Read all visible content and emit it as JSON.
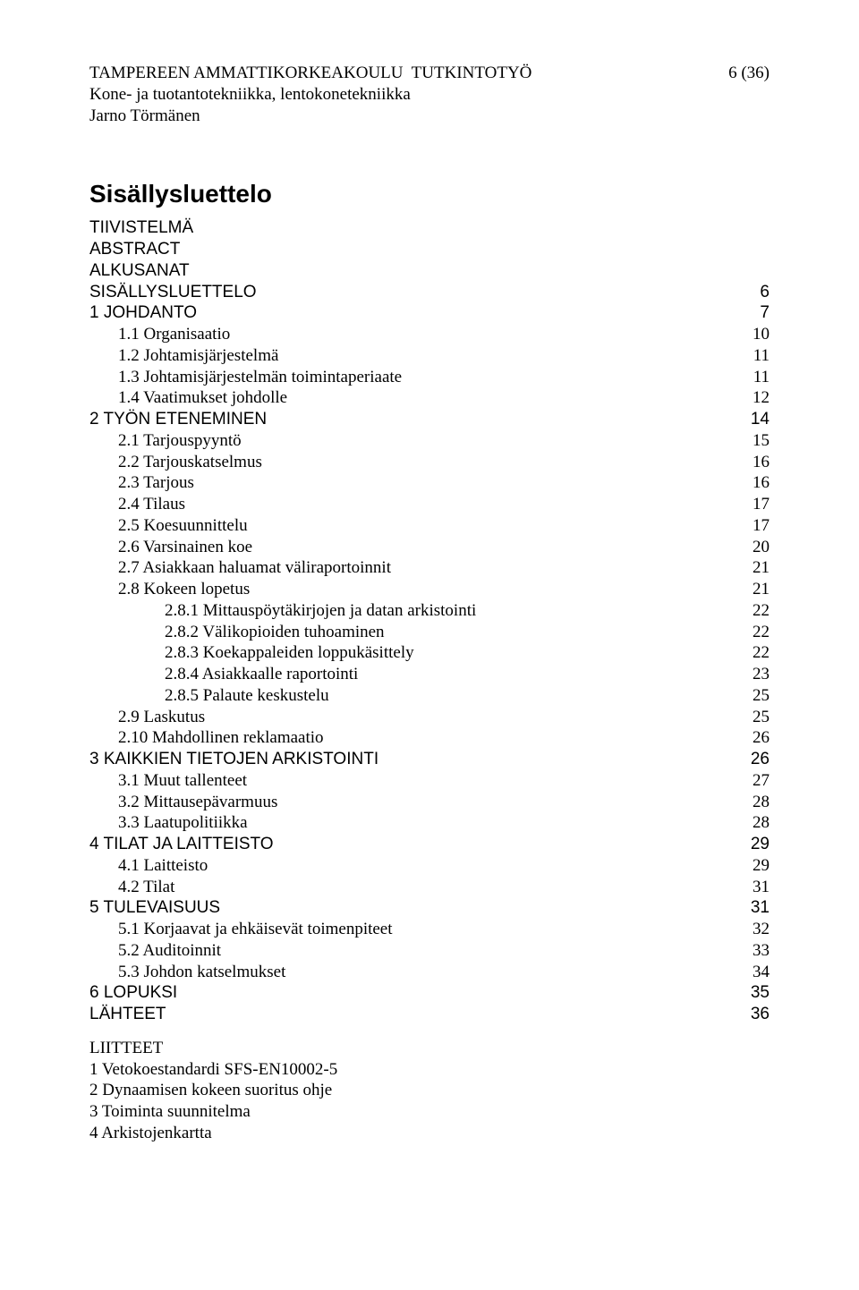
{
  "header": {
    "line1_left": "TAMPEREEN AMMATTIKORKEAKOULU  TUTKINTOTYÖ",
    "line1_right": "6 (36)",
    "line2": "Kone- ja tuotantotekniikka, lentokonetekniikka",
    "line3": "Jarno Törmänen"
  },
  "title": "Sisällysluettelo",
  "toc": [
    {
      "label": "TIIVISTELMÄ",
      "page": "",
      "indent": 0,
      "sans": true,
      "leader": false
    },
    {
      "label": "ABSTRACT",
      "page": "",
      "indent": 0,
      "sans": true,
      "leader": false
    },
    {
      "label": "ALKUSANAT",
      "page": "",
      "indent": 0,
      "sans": true,
      "leader": false
    },
    {
      "label": "SISÄLLYSLUETTELO",
      "page": "6",
      "indent": 0,
      "sans": true,
      "leader": true
    },
    {
      "label": "1 JOHDANTO",
      "page": "7",
      "indent": 0,
      "sans": true,
      "leader": true
    },
    {
      "label": "1.1 Organisaatio",
      "page": "10",
      "indent": 1,
      "sans": false,
      "leader": true
    },
    {
      "label": "1.2 Johtamisjärjestelmä",
      "page": "11",
      "indent": 1,
      "sans": false,
      "leader": true
    },
    {
      "label": "1.3 Johtamisjärjestelmän toimintaperiaate",
      "page": "11",
      "indent": 1,
      "sans": false,
      "leader": true
    },
    {
      "label": "1.4 Vaatimukset johdolle",
      "page": "12",
      "indent": 1,
      "sans": false,
      "leader": true
    },
    {
      "label": "2 TYÖN ETENEMINEN",
      "page": "14",
      "indent": 0,
      "sans": true,
      "leader": true
    },
    {
      "label": "2.1 Tarjouspyyntö",
      "page": "15",
      "indent": 1,
      "sans": false,
      "leader": true
    },
    {
      "label": "2.2 Tarjouskatselmus",
      "page": "16",
      "indent": 1,
      "sans": false,
      "leader": true
    },
    {
      "label": "2.3 Tarjous",
      "page": "16",
      "indent": 1,
      "sans": false,
      "leader": true
    },
    {
      "label": "2.4 Tilaus",
      "page": "17",
      "indent": 1,
      "sans": false,
      "leader": true
    },
    {
      "label": "2.5 Koesuunnittelu",
      "page": "17",
      "indent": 1,
      "sans": false,
      "leader": true
    },
    {
      "label": "2.6 Varsinainen koe",
      "page": "20",
      "indent": 1,
      "sans": false,
      "leader": true
    },
    {
      "label": "2.7 Asiakkaan haluamat väliraportoinnit",
      "page": "21",
      "indent": 1,
      "sans": false,
      "leader": true
    },
    {
      "label": "2.8 Kokeen lopetus",
      "page": "21",
      "indent": 1,
      "sans": false,
      "leader": true
    },
    {
      "label": "2.8.1 Mittauspöytäkirjojen ja datan arkistointi",
      "page": "22",
      "indent": 2,
      "sans": false,
      "leader": true
    },
    {
      "label": "2.8.2 Välikopioiden tuhoaminen",
      "page": "22",
      "indent": 2,
      "sans": false,
      "leader": true
    },
    {
      "label": "2.8.3 Koekappaleiden loppukäsittely",
      "page": "22",
      "indent": 2,
      "sans": false,
      "leader": true
    },
    {
      "label": "2.8.4 Asiakkaalle raportointi",
      "page": "23",
      "indent": 2,
      "sans": false,
      "leader": true
    },
    {
      "label": "2.8.5 Palaute keskustelu",
      "page": "25",
      "indent": 2,
      "sans": false,
      "leader": true
    },
    {
      "label": "2.9 Laskutus",
      "page": "25",
      "indent": 1,
      "sans": false,
      "leader": true
    },
    {
      "label": "2.10 Mahdollinen reklamaatio",
      "page": "26",
      "indent": 1,
      "sans": false,
      "leader": true
    },
    {
      "label": "3 KAIKKIEN TIETOJEN ARKISTOINTI",
      "page": "26",
      "indent": 0,
      "sans": true,
      "leader": true
    },
    {
      "label": "3.1 Muut tallenteet",
      "page": "27",
      "indent": 1,
      "sans": false,
      "leader": true
    },
    {
      "label": "3.2 Mittausepävarmuus",
      "page": "28",
      "indent": 1,
      "sans": false,
      "leader": true
    },
    {
      "label": "3.3 Laatupolitiikka",
      "page": "28",
      "indent": 1,
      "sans": false,
      "leader": true
    },
    {
      "label": "4 TILAT JA LAITTEISTO",
      "page": "29",
      "indent": 0,
      "sans": true,
      "leader": true
    },
    {
      "label": "4.1 Laitteisto",
      "page": "29",
      "indent": 1,
      "sans": false,
      "leader": true
    },
    {
      "label": "4.2 Tilat",
      "page": "31",
      "indent": 1,
      "sans": false,
      "leader": true
    },
    {
      "label": "5 TULEVAISUUS",
      "page": "31",
      "indent": 0,
      "sans": true,
      "leader": true
    },
    {
      "label": "5.1 Korjaavat ja ehkäisevät toimenpiteet",
      "page": "32",
      "indent": 1,
      "sans": false,
      "leader": true
    },
    {
      "label": "5.2 Auditoinnit",
      "page": "33",
      "indent": 1,
      "sans": false,
      "leader": true
    },
    {
      "label": "5.3 Johdon katselmukset",
      "page": "34",
      "indent": 1,
      "sans": false,
      "leader": true
    },
    {
      "label": "6 LOPUKSI",
      "page": "35",
      "indent": 0,
      "sans": true,
      "leader": true
    },
    {
      "label": "LÄHTEET",
      "page": "36",
      "indent": 0,
      "sans": true,
      "leader": true
    }
  ],
  "post": {
    "title": "LIITTEET",
    "lines": [
      "1 Vetokoestandardi SFS-EN10002-5",
      "2 Dynaamisen kokeen suoritus ohje",
      "3 Toiminta suunnitelma",
      "4 Arkistojenkartta"
    ]
  }
}
